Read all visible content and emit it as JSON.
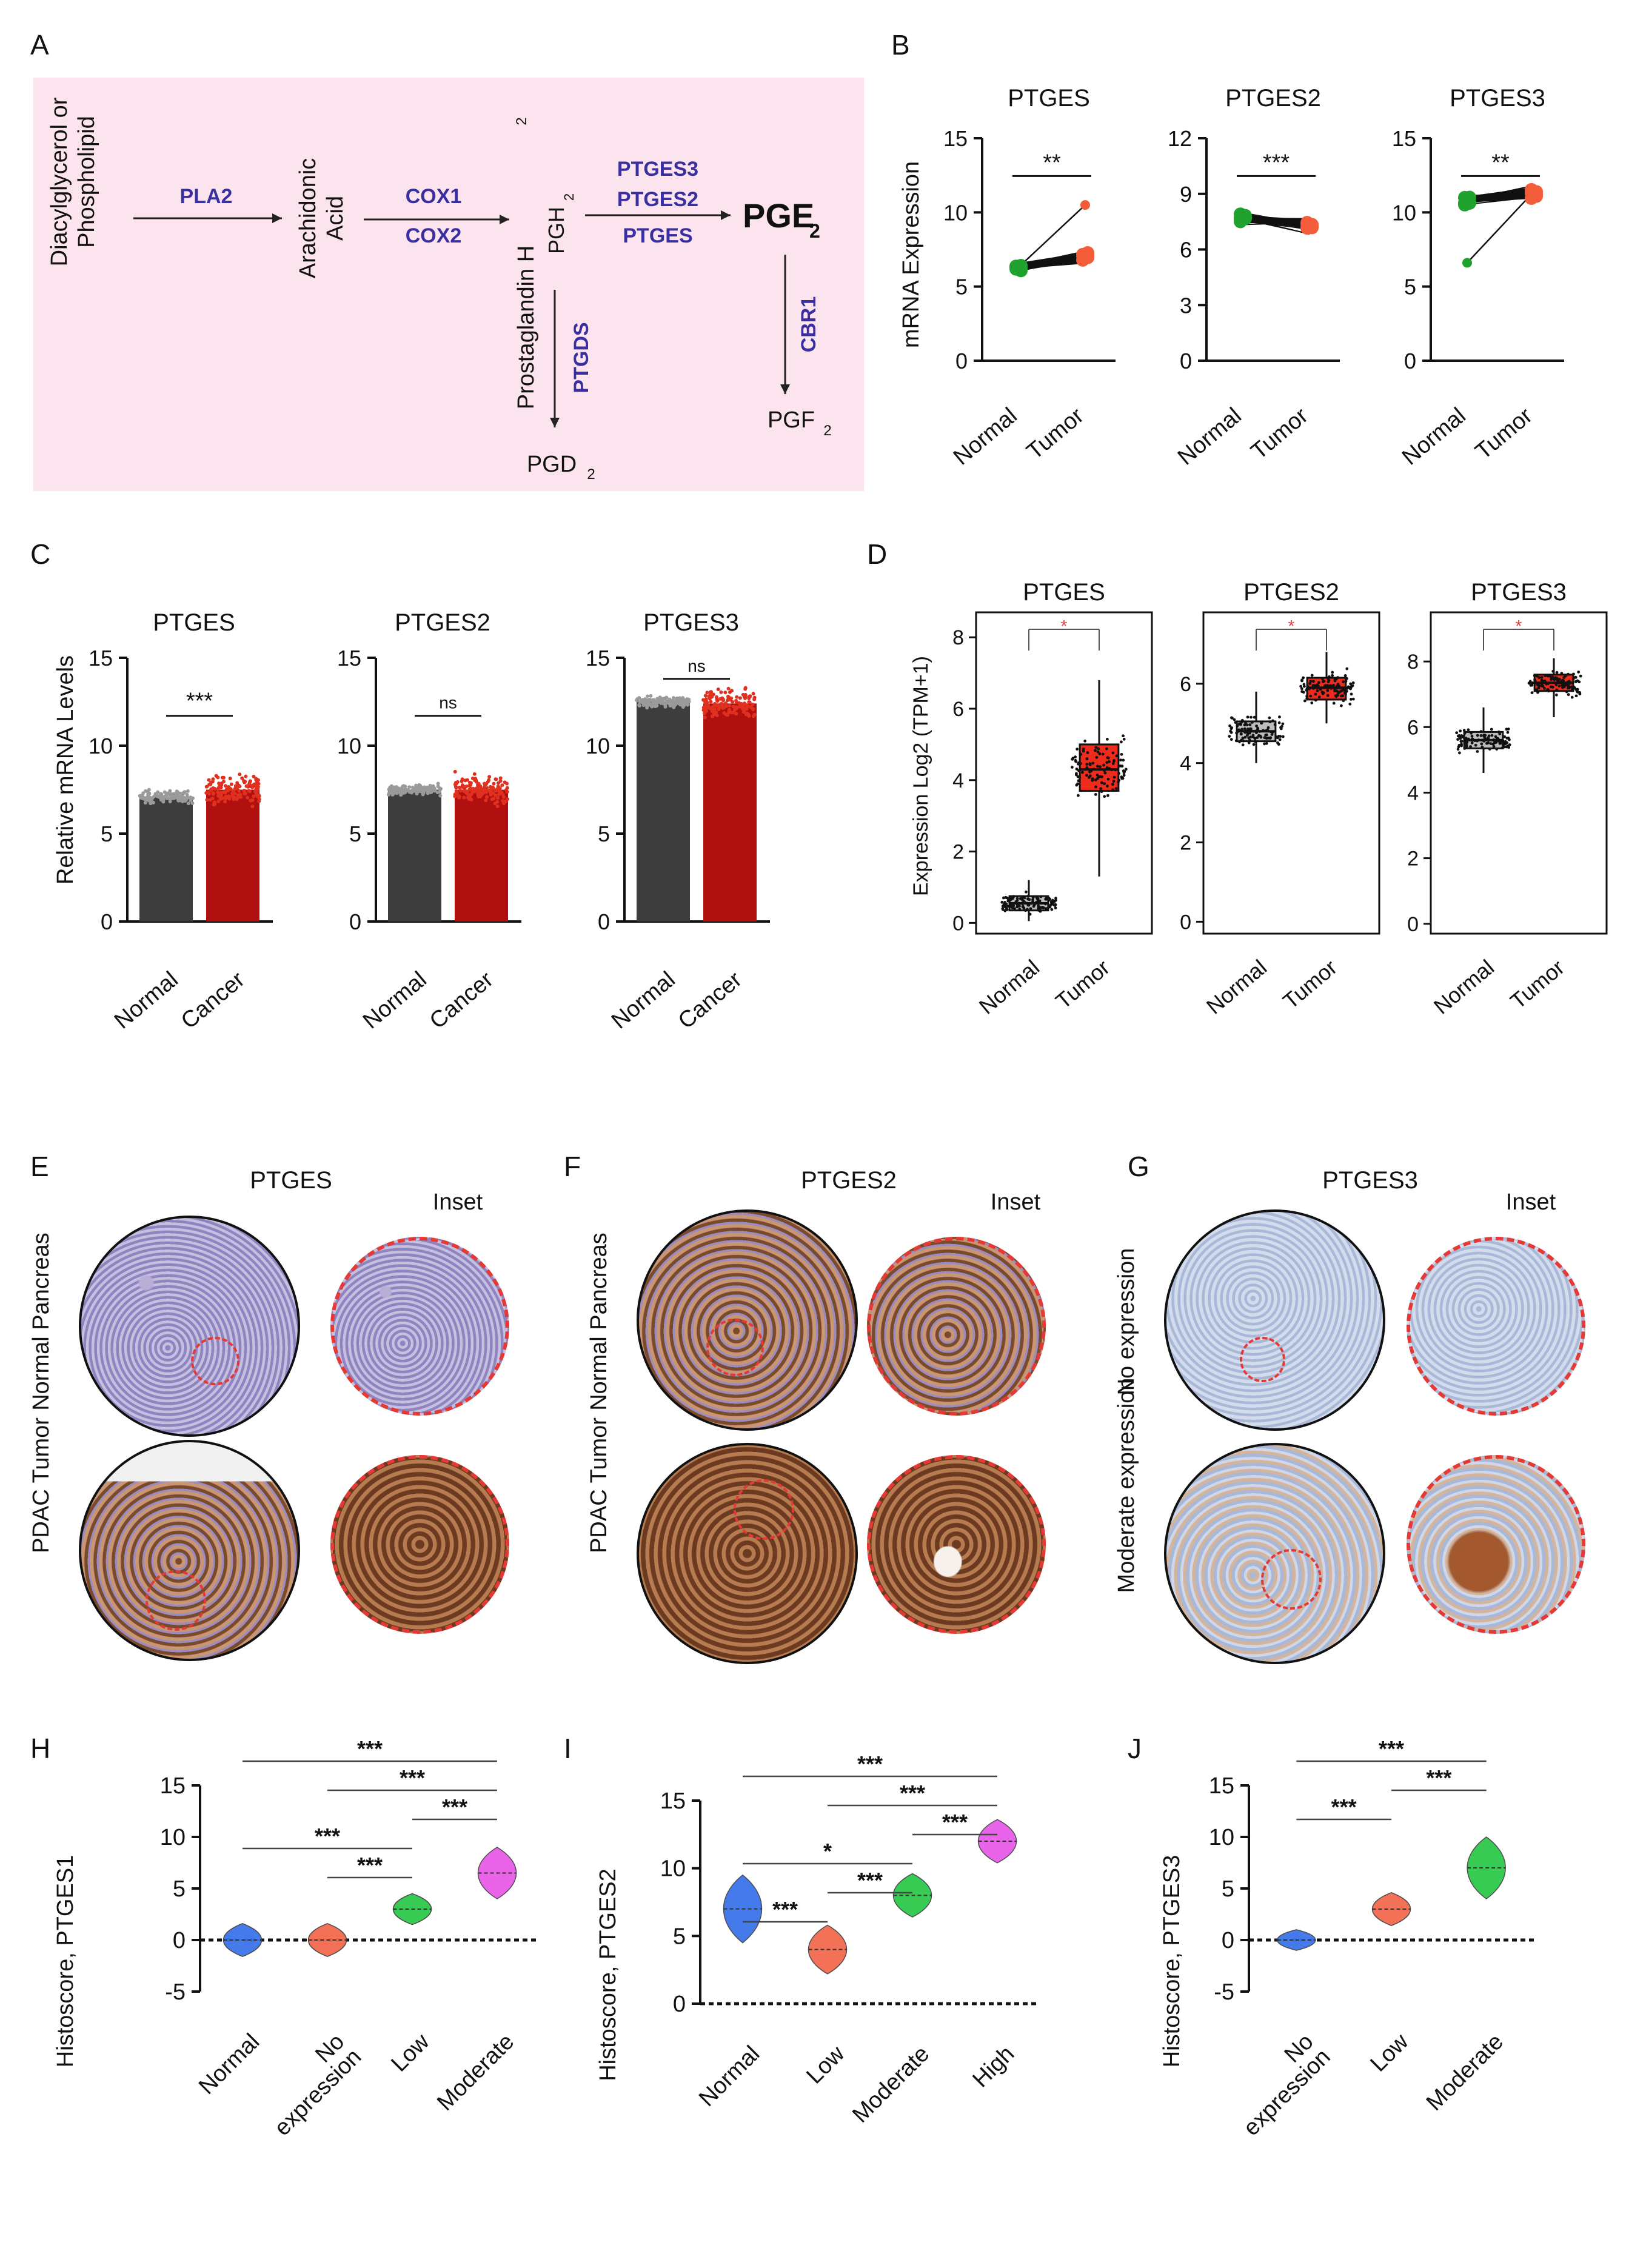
{
  "panel_letters": [
    "A",
    "B",
    "C",
    "D",
    "E",
    "F",
    "G",
    "H",
    "I",
    "J"
  ],
  "pathway": {
    "substrate": [
      "Diacylglycerol or",
      "Phospholipid"
    ],
    "arachidonic": [
      "Arachidonic",
      "Acid"
    ],
    "prostaglandin_h2": [
      "Prostaglandin H",
      "2"
    ],
    "pgh2": [
      "PGH",
      "2"
    ],
    "pge2": [
      "PGE",
      "2"
    ],
    "pgd2": [
      "PGD",
      "2"
    ],
    "pgf2": [
      "PGF",
      "2"
    ],
    "enzymes": {
      "pla2": "PLA2",
      "cox1": "COX1",
      "cox2": "COX2",
      "ptges3": "PTGES3",
      "ptges2": "PTGES2",
      "ptges": "PTGES",
      "ptgds": "PTGDS",
      "cbr1": "CBR1"
    }
  },
  "colors": {
    "pathway_bg": "#fce4ef",
    "enzyme": "#3a2fa0",
    "normal_green": "#1fa32e",
    "tumor_red": "#f25c38",
    "normal_bar": "#3d3d3d",
    "cancer_bar": "#b01010",
    "box_red": "#ee2b1c",
    "inset_dash": "#e53935",
    "violin_blue": "#3b73e8",
    "violin_red": "#f26a4f",
    "violin_green": "#2ec94a",
    "violin_magenta": "#e85ce8"
  },
  "panel_B": {
    "ylabel": "mRNA Expression",
    "charts": [
      {
        "title": "PTGES",
        "yticks": [
          "0",
          "5",
          "10",
          "15"
        ],
        "ylim": [
          0,
          15
        ],
        "categories": [
          "Normal",
          "Tumor"
        ],
        "normal": 6.3,
        "tumor": 7.0,
        "tumor_max": 10.5,
        "sig": "**"
      },
      {
        "title": "PTGES2",
        "yticks": [
          "0",
          "3",
          "6",
          "9",
          "12"
        ],
        "ylim": [
          0,
          12
        ],
        "categories": [
          "Normal",
          "Tumor"
        ],
        "normal": 7.7,
        "tumor": 7.3,
        "sig": "***"
      },
      {
        "title": "PTGES3",
        "yticks": [
          "0",
          "5",
          "10",
          "15"
        ],
        "ylim": [
          0,
          15
        ],
        "categories": [
          "Normal",
          "Tumor"
        ],
        "normal": 10.8,
        "tumor": 11.4,
        "normal_min": 6.6,
        "sig": "**"
      }
    ]
  },
  "panel_C": {
    "ylabel": "Relative mRNA Levels",
    "charts": [
      {
        "title": "PTGES",
        "yticks": [
          "0",
          "5",
          "10",
          "15"
        ],
        "ylim": [
          0,
          15
        ],
        "categories": [
          "Normal",
          "Cancer"
        ],
        "values": [
          7.1,
          7.5
        ],
        "sig": "***"
      },
      {
        "title": "PTGES2",
        "yticks": [
          "0",
          "5",
          "10",
          "15"
        ],
        "ylim": [
          0,
          15
        ],
        "categories": [
          "Normal",
          "Cancer"
        ],
        "values": [
          7.5,
          7.5
        ],
        "sig": "ns"
      },
      {
        "title": "PTGES3",
        "yticks": [
          "0",
          "5",
          "10",
          "15"
        ],
        "ylim": [
          0,
          15
        ],
        "categories": [
          "Normal",
          "Cancer"
        ],
        "values": [
          12.5,
          12.4
        ],
        "sig": "ns"
      }
    ]
  },
  "panel_D": {
    "ylabel": "Expression Log2 (TPM+1)",
    "charts": [
      {
        "title": "PTGES",
        "yticks": [
          "0",
          "2",
          "4",
          "6",
          "8"
        ],
        "ylim": [
          -0.3,
          8.7
        ],
        "categories": [
          "Normal",
          "Tumor"
        ],
        "normal": {
          "q1": 0.35,
          "median": 0.55,
          "q3": 0.75,
          "low": 0.05,
          "high": 1.2
        },
        "tumor": {
          "q1": 3.7,
          "median": 4.3,
          "q3": 5.0,
          "low": 1.3,
          "high": 6.8
        },
        "sig": "*"
      },
      {
        "title": "PTGES2",
        "yticks": [
          "0",
          "2",
          "4",
          "6"
        ],
        "ylim": [
          -0.3,
          7.8
        ],
        "categories": [
          "Normal",
          "Tumor"
        ],
        "normal": {
          "q1": 4.55,
          "median": 4.8,
          "q3": 5.05,
          "low": 4.0,
          "high": 5.8
        },
        "tumor": {
          "q1": 5.6,
          "median": 5.9,
          "q3": 6.15,
          "low": 5.0,
          "high": 6.8
        },
        "sig": "*"
      },
      {
        "title": "PTGES3",
        "yticks": [
          "0",
          "2",
          "4",
          "6",
          "8"
        ],
        "ylim": [
          -0.3,
          9.5
        ],
        "categories": [
          "Normal",
          "Tumor"
        ],
        "normal": {
          "q1": 5.35,
          "median": 5.6,
          "q3": 5.85,
          "low": 4.6,
          "high": 6.6
        },
        "tumor": {
          "q1": 7.1,
          "median": 7.35,
          "q3": 7.6,
          "low": 6.3,
          "high": 8.1
        },
        "sig": "*"
      }
    ]
  },
  "ihc": {
    "E": {
      "title": "PTGES",
      "inset": "Inset",
      "rows": [
        "Normal Pancreas",
        "PDAC Tumor"
      ]
    },
    "F": {
      "title": "PTGES2",
      "inset": "Inset",
      "rows": [
        "Normal Pancreas",
        "PDAC Tumor"
      ]
    },
    "G": {
      "title": "PTGES3",
      "inset": "Inset",
      "rows": [
        "No expression",
        "Moderate expression"
      ]
    }
  },
  "chart_data": [
    {
      "type": "violin",
      "panel": "H",
      "ylabel": "Histoscore, PTGES1",
      "yticks": [
        "-5",
        "0",
        "5",
        "10",
        "15"
      ],
      "ylim": [
        -5,
        15
      ],
      "categories": [
        "Normal",
        "No expression",
        "Low",
        "Moderate"
      ],
      "centers": [
        0,
        0,
        3,
        6.5
      ],
      "spreads": [
        1.6,
        1.6,
        1.5,
        2.5
      ],
      "comparisons": [
        {
          "from": 0,
          "to": 3,
          "label": "***"
        },
        {
          "from": 1,
          "to": 3,
          "label": "***"
        },
        {
          "from": 2,
          "to": 3,
          "label": "***"
        },
        {
          "from": 0,
          "to": 2,
          "label": "***"
        },
        {
          "from": 1,
          "to": 2,
          "label": "***"
        }
      ]
    },
    {
      "type": "violin",
      "panel": "I",
      "ylabel": "Histoscore, PTGES2",
      "yticks": [
        "0",
        "5",
        "10",
        "15"
      ],
      "ylim": [
        0,
        15
      ],
      "categories": [
        "Normal",
        "Low",
        "Moderate",
        "High"
      ],
      "centers": [
        7,
        4,
        8,
        12
      ],
      "spreads": [
        2.5,
        1.8,
        1.6,
        1.6
      ],
      "comparisons": [
        {
          "from": 0,
          "to": 3,
          "label": "***"
        },
        {
          "from": 1,
          "to": 3,
          "label": "***"
        },
        {
          "from": 2,
          "to": 3,
          "label": "***"
        },
        {
          "from": 0,
          "to": 2,
          "label": "*"
        },
        {
          "from": 1,
          "to": 2,
          "label": "***"
        },
        {
          "from": 0,
          "to": 1,
          "label": "***"
        }
      ]
    },
    {
      "type": "violin",
      "panel": "J",
      "ylabel": "Histoscore, PTGES3",
      "yticks": [
        "-5",
        "0",
        "5",
        "10",
        "15"
      ],
      "ylim": [
        -5,
        15
      ],
      "categories": [
        "No expression",
        "Low",
        "Moderate"
      ],
      "centers": [
        0,
        3,
        7
      ],
      "spreads": [
        1.0,
        1.6,
        3.0
      ],
      "comparisons": [
        {
          "from": 0,
          "to": 2,
          "label": "***"
        },
        {
          "from": 1,
          "to": 2,
          "label": "***"
        },
        {
          "from": 0,
          "to": 1,
          "label": "***"
        }
      ]
    }
  ]
}
